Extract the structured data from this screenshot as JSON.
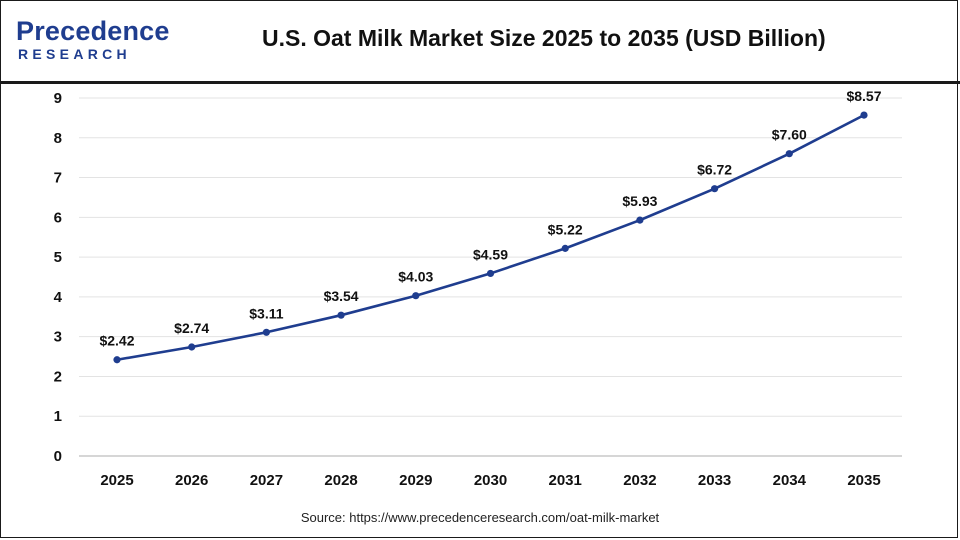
{
  "header": {
    "logo_top": "Precedence",
    "logo_bottom": "RESEARCH",
    "title": "U.S. Oat Milk Market Size 2025 to 2035 (USD Billion)"
  },
  "footer": {
    "source": "Source: https://www.precedenceresearch.com/oat-milk-market"
  },
  "colors": {
    "series": "#1f3d8f",
    "grid": "#e3e3e3",
    "brand": "#1f3d8f"
  },
  "chart_data": {
    "type": "line",
    "title": "U.S. Oat Milk Market Size 2025 to 2035 (USD Billion)",
    "xlabel": "",
    "ylabel": "",
    "categories": [
      "2025",
      "2026",
      "2027",
      "2028",
      "2029",
      "2030",
      "2031",
      "2032",
      "2033",
      "2034",
      "2035"
    ],
    "values": [
      2.42,
      2.74,
      3.11,
      3.54,
      4.03,
      4.59,
      5.22,
      5.93,
      6.72,
      7.6,
      8.57
    ],
    "data_labels": [
      "$2.42",
      "$2.74",
      "$3.11",
      "$3.54",
      "$4.03",
      "$4.59",
      "$5.22",
      "$5.93",
      "$6.72",
      "$7.60",
      "$8.57"
    ],
    "ylim": [
      0,
      9
    ],
    "yticks": [
      "0",
      "1",
      "2",
      "3",
      "4",
      "5",
      "6",
      "7",
      "8",
      "9"
    ],
    "grid": true,
    "legend": "none"
  }
}
